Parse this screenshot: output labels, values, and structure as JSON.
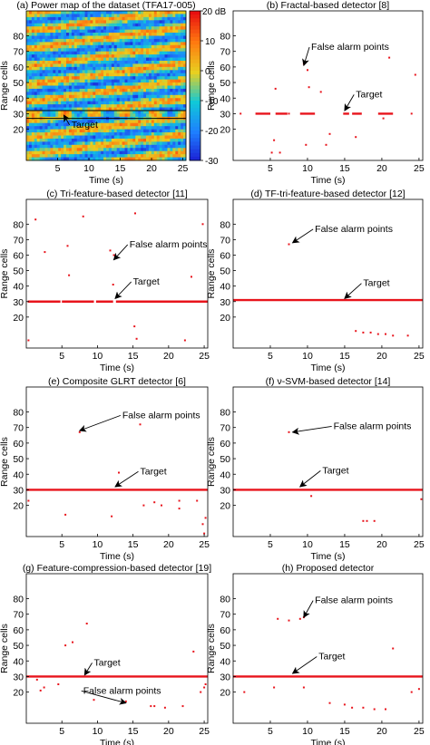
{
  "figure": {
    "background": "#ffffff"
  },
  "chart_data": [
    {
      "id": "a",
      "type": "heatmap",
      "title": "(a) Power map of the dataset (TFA17-005)",
      "xlabel": "Time (s)",
      "ylabel": "Range cells",
      "xlim": [
        0,
        25.5
      ],
      "ylim": [
        0,
        96
      ],
      "xticks": [
        5,
        10,
        15,
        20,
        25
      ],
      "yticks": [
        20,
        30,
        40,
        50,
        60,
        70,
        80
      ],
      "colorbar": {
        "ticks": [
          20,
          10,
          0,
          -10,
          -20,
          -30
        ],
        "top_label": "20 dB",
        "range": [
          -30,
          20
        ],
        "colors": [
          "#1b1bd1",
          "#1e7fff",
          "#10c8d8",
          "#e8d020",
          "#ff7a10",
          "#e81010"
        ]
      },
      "target_band": [
        27,
        32
      ],
      "annotations": [
        {
          "text": "Target",
          "x": 7.2,
          "y": 21,
          "to": [
            6,
            29
          ]
        }
      ]
    },
    {
      "id": "b",
      "type": "scatter",
      "title": "(b) Fractal-based detector [8]",
      "xlabel": "Time (s)",
      "ylabel": "Range cells",
      "xlim": [
        0,
        25.5
      ],
      "ylim": [
        0,
        96
      ],
      "xticks": [
        5,
        10,
        15,
        20,
        25
      ],
      "yticks": [
        20,
        30,
        40,
        50,
        60,
        70,
        80
      ],
      "target_segments": [
        [
          3.0,
          5.0,
          30
        ],
        [
          5.7,
          7.3,
          30
        ],
        [
          9.0,
          11.0,
          30
        ],
        [
          14.8,
          15.6,
          30
        ],
        [
          16.0,
          17.3,
          30
        ],
        [
          19.5,
          21.5,
          30
        ]
      ],
      "points": [
        [
          1,
          30
        ],
        [
          7.5,
          30
        ],
        [
          24,
          30
        ],
        [
          9.5,
          62
        ],
        [
          10,
          58
        ],
        [
          21,
          66
        ],
        [
          24.5,
          55
        ],
        [
          5.2,
          5
        ],
        [
          6.3,
          5
        ],
        [
          9.8,
          10
        ],
        [
          12.5,
          10
        ],
        [
          5.5,
          13
        ],
        [
          10.2,
          47
        ],
        [
          13,
          17
        ],
        [
          16.5,
          15
        ],
        [
          20.2,
          27
        ],
        [
          5.7,
          46
        ],
        [
          11.8,
          44
        ]
      ],
      "annotations": [
        {
          "text": "False alarm points",
          "x": 10.5,
          "y": 71,
          "to": [
            9.5,
            61
          ]
        },
        {
          "text": "Target",
          "x": 16.5,
          "y": 40.5,
          "to": [
            15,
            32
          ]
        }
      ]
    },
    {
      "id": "c",
      "type": "scatter",
      "title": "(c) Tri-feature-based detector [11]",
      "xlabel": "Time (s)",
      "ylabel": "Range cells",
      "xlim": [
        0,
        25.5
      ],
      "ylim": [
        0,
        96
      ],
      "xticks": [
        5,
        10,
        15,
        20,
        25
      ],
      "yticks": [
        20,
        30,
        40,
        50,
        60,
        70,
        80
      ],
      "target_segments": [
        [
          0.2,
          4.8,
          30
        ],
        [
          5.0,
          9.5,
          30
        ],
        [
          9.8,
          12.2,
          30
        ],
        [
          12.6,
          25.5,
          30
        ]
      ],
      "points": [
        [
          0.3,
          5
        ],
        [
          1.3,
          83
        ],
        [
          5.8,
          66
        ],
        [
          6.0,
          47
        ],
        [
          8,
          85
        ],
        [
          11.8,
          63
        ],
        [
          12.3,
          60
        ],
        [
          15.3,
          87
        ],
        [
          12.2,
          41
        ],
        [
          15.2,
          14
        ],
        [
          15.5,
          6
        ],
        [
          22.3,
          5
        ],
        [
          23.2,
          46
        ],
        [
          24.8,
          80
        ],
        [
          2.6,
          62
        ],
        [
          7.2,
          30
        ]
      ],
      "annotations": [
        {
          "text": "False alarm points",
          "x": 14.5,
          "y": 65,
          "to": [
            12.3,
            57
          ]
        },
        {
          "text": "Target",
          "x": 15,
          "y": 41,
          "to": [
            12.5,
            32
          ]
        }
      ]
    },
    {
      "id": "d",
      "type": "scatter",
      "title": "(d) TF-tri-feature-based detector [12]",
      "xlabel": "Time (s)",
      "ylabel": "Range cells",
      "xlim": [
        0,
        25.5
      ],
      "ylim": [
        0,
        96
      ],
      "xticks": [
        5,
        10,
        15,
        20,
        25
      ],
      "yticks": [
        20,
        30,
        40,
        50,
        60,
        70,
        80
      ],
      "target_segments": [
        [
          0,
          25.5,
          31
        ]
      ],
      "points": [
        [
          7.5,
          67
        ],
        [
          17.5,
          10
        ],
        [
          18.5,
          10
        ],
        [
          19.5,
          9
        ],
        [
          20.5,
          9
        ],
        [
          23.5,
          8
        ],
        [
          21.5,
          8
        ],
        [
          16.5,
          11
        ]
      ],
      "annotations": [
        {
          "text": "False alarm points",
          "x": 11,
          "y": 75,
          "to": [
            8,
            68
          ]
        },
        {
          "text": "Target",
          "x": 17.5,
          "y": 40,
          "to": [
            15,
            32
          ]
        }
      ]
    },
    {
      "id": "e",
      "type": "scatter",
      "title": "(e) Composite GLRT detector [6]",
      "xlabel": "Time (s)",
      "ylabel": "Range cells",
      "xlim": [
        0,
        25.5
      ],
      "ylim": [
        0,
        96
      ],
      "xticks": [
        5,
        10,
        15,
        20,
        25
      ],
      "yticks": [
        20,
        30,
        40,
        50,
        60,
        70,
        80
      ],
      "target_segments": [
        [
          0,
          25.5,
          30
        ]
      ],
      "points": [
        [
          0.3,
          23
        ],
        [
          7.5,
          67
        ],
        [
          13,
          41
        ],
        [
          16,
          72
        ],
        [
          16.5,
          20
        ],
        [
          18,
          22
        ],
        [
          19,
          20
        ],
        [
          21.5,
          18
        ],
        [
          21.5,
          23
        ],
        [
          24,
          23
        ],
        [
          25,
          2
        ],
        [
          25.2,
          12
        ],
        [
          24.8,
          8
        ],
        [
          12,
          13
        ],
        [
          5.5,
          14
        ]
      ],
      "annotations": [
        {
          "text": "False alarm points",
          "x": 13.5,
          "y": 76,
          "to": [
            7.5,
            68
          ]
        },
        {
          "text": "Target",
          "x": 16,
          "y": 40,
          "to": [
            12.5,
            32
          ]
        }
      ]
    },
    {
      "id": "f",
      "type": "scatter",
      "title": "(f) ν-SVM-based detector [14]",
      "xlabel": "Time (s)",
      "ylabel": "Range cells",
      "xlim": [
        0,
        25.5
      ],
      "ylim": [
        0,
        96
      ],
      "xticks": [
        5,
        10,
        15,
        20,
        25
      ],
      "yticks": [
        20,
        30,
        40,
        50,
        60,
        70,
        80
      ],
      "target_segments": [
        [
          0,
          25.5,
          30
        ]
      ],
      "points": [
        [
          7.5,
          67
        ],
        [
          25.3,
          24
        ],
        [
          10.5,
          26
        ],
        [
          17.5,
          10
        ],
        [
          18,
          10
        ],
        [
          19,
          10
        ]
      ],
      "annotations": [
        {
          "text": "False alarm points",
          "x": 13.5,
          "y": 69,
          "to": [
            8,
            67
          ]
        },
        {
          "text": "Target",
          "x": 12,
          "y": 40.5,
          "to": [
            9,
            32
          ]
        }
      ]
    },
    {
      "id": "g",
      "type": "scatter",
      "title": "(g) Feature-compression-based detector [19]",
      "xlabel": "Time (s)",
      "ylabel": "Range cells",
      "xlim": [
        0,
        25.5
      ],
      "ylim": [
        0,
        96
      ],
      "xticks": [
        5,
        10,
        15,
        20,
        25
      ],
      "yticks": [
        20,
        30,
        40,
        50,
        60,
        70,
        80
      ],
      "target_segments": [
        [
          0,
          25.5,
          30
        ]
      ],
      "points": [
        [
          1.5,
          28
        ],
        [
          2.5,
          23
        ],
        [
          5.5,
          50
        ],
        [
          6.5,
          52
        ],
        [
          8.5,
          64
        ],
        [
          4.5,
          25
        ],
        [
          9.5,
          15
        ],
        [
          14,
          14
        ],
        [
          17.5,
          11
        ],
        [
          18,
          11
        ],
        [
          19.5,
          10
        ],
        [
          22,
          11
        ],
        [
          23.5,
          46
        ],
        [
          24.5,
          20
        ],
        [
          25,
          23
        ],
        [
          25.2,
          25
        ],
        [
          2,
          21
        ]
      ],
      "annotations": [
        {
          "text": "Target",
          "x": 9.5,
          "y": 37,
          "to": [
            8.2,
            31
          ]
        },
        {
          "text": "False alarm points",
          "x": 8,
          "y": 19,
          "to": [
            14,
            13
          ]
        }
      ]
    },
    {
      "id": "h",
      "type": "scatter",
      "title": "(h) Proposed detector",
      "xlabel": "Time (s)",
      "ylabel": "Range cells",
      "xlim": [
        0,
        25.5
      ],
      "ylim": [
        0,
        96
      ],
      "xticks": [
        5,
        10,
        15,
        20,
        25
      ],
      "yticks": [
        20,
        30,
        40,
        50,
        60,
        70,
        80
      ],
      "target_segments": [
        [
          0,
          25.5,
          30
        ]
      ],
      "points": [
        [
          6,
          67
        ],
        [
          7.5,
          66
        ],
        [
          9,
          67
        ],
        [
          9.5,
          68
        ],
        [
          21.5,
          48
        ],
        [
          1.5,
          20
        ],
        [
          5.5,
          23
        ],
        [
          13,
          13
        ],
        [
          15,
          12
        ],
        [
          16,
          10
        ],
        [
          17.5,
          10
        ],
        [
          19,
          9
        ],
        [
          20.5,
          9
        ],
        [
          24,
          20
        ],
        [
          25,
          22
        ],
        [
          9.5,
          23
        ]
      ],
      "annotations": [
        {
          "text": "False alarm points",
          "x": 11,
          "y": 77,
          "to": [
            9.5,
            68
          ]
        },
        {
          "text": "Target",
          "x": 11.5,
          "y": 41,
          "to": [
            8,
            32
          ]
        }
      ]
    }
  ]
}
